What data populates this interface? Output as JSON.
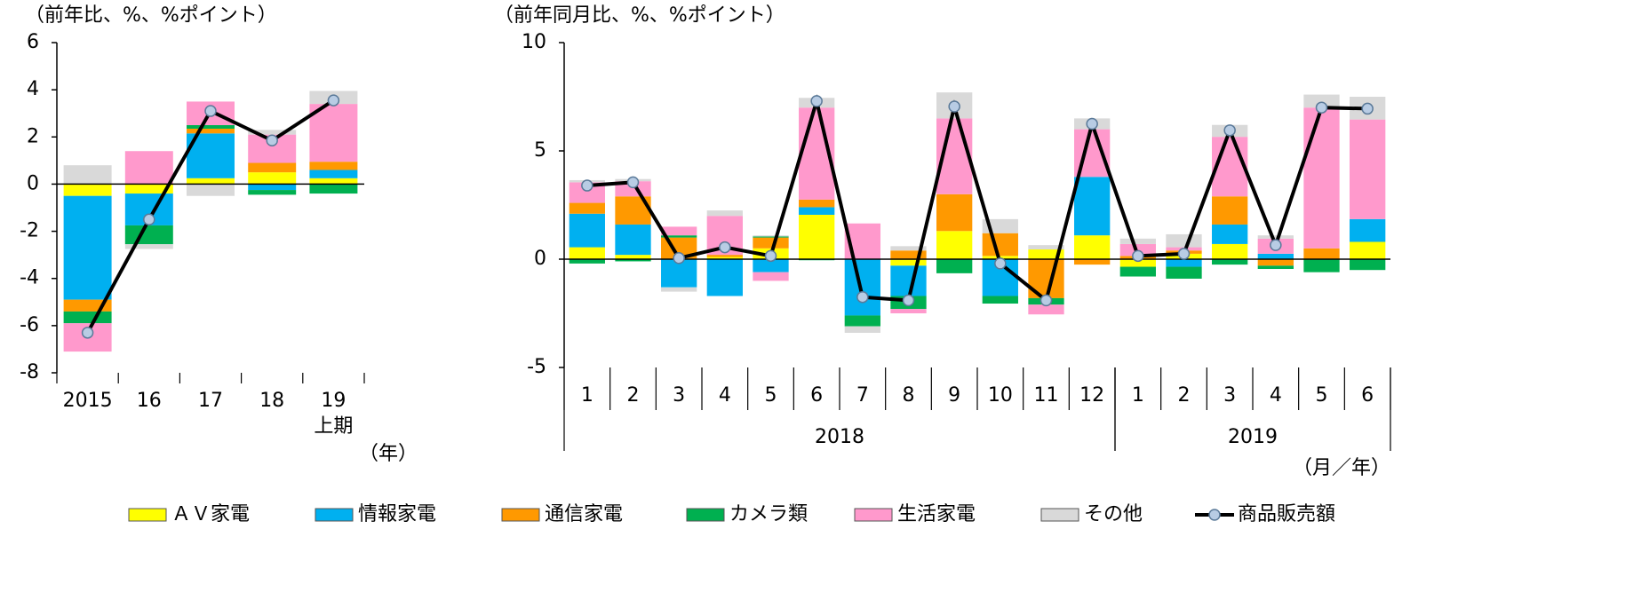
{
  "chart_data": [
    {
      "type": "bar",
      "stacked": true,
      "y_label": "（前年比、%、%ポイント）",
      "x_label": "（年）",
      "categories": [
        "2015",
        "16",
        "17",
        "18",
        "19\n上期"
      ],
      "ylim": [
        -8,
        6
      ],
      "yticks": [
        -8,
        -6,
        -4,
        -2,
        0,
        2,
        4,
        6
      ],
      "series": [
        {
          "name": "ＡＶ家電",
          "color": "#ffff00",
          "values": [
            -0.5,
            -0.4,
            0.25,
            0.5,
            0.25
          ]
        },
        {
          "name": "情報家電",
          "color": "#00b0f0",
          "values": [
            -4.4,
            -1.35,
            1.9,
            -0.25,
            0.35
          ]
        },
        {
          "name": "通信家電",
          "color": "#ff9900",
          "values": [
            -0.5,
            0,
            0.2,
            0.4,
            0.35
          ]
        },
        {
          "name": "カメラ類",
          "color": "#00b050",
          "values": [
            -0.5,
            -0.8,
            0.15,
            -0.2,
            -0.4
          ]
        },
        {
          "name": "生活家電",
          "color": "#ff99cc",
          "values": [
            -1.2,
            1.4,
            1.0,
            1.2,
            2.45
          ]
        },
        {
          "name": "その他",
          "color": "#d9d9d9",
          "values": [
            0.8,
            -0.2,
            -0.5,
            0.2,
            0.55
          ]
        },
        {
          "name": "商品販売額",
          "type": "line",
          "color": "#000000",
          "marker_color": "#b8cce4",
          "values": [
            -6.3,
            -1.5,
            3.1,
            1.85,
            3.55
          ]
        }
      ]
    },
    {
      "type": "bar",
      "stacked": true,
      "y_label": "（前年同月比、%、%ポイント）",
      "x_label": "（月／年）",
      "groups": [
        {
          "label": "2018",
          "categories": [
            "1",
            "2",
            "3",
            "4",
            "5",
            "6",
            "7",
            "8",
            "9",
            "10",
            "11",
            "12"
          ]
        },
        {
          "label": "2019",
          "categories": [
            "1",
            "2",
            "3",
            "4",
            "5",
            "6"
          ]
        }
      ],
      "ylim": [
        -5,
        10
      ],
      "yticks": [
        -5,
        0,
        5,
        10
      ],
      "series": [
        {
          "name": "ＡＶ家電",
          "color": "#ffff00",
          "values": [
            0.55,
            0.2,
            0,
            0.1,
            0.5,
            2.05,
            0,
            -0.3,
            1.3,
            0.15,
            0.45,
            1.1,
            -0.35,
            0.25,
            0.7,
            0,
            0,
            0.8
          ]
        },
        {
          "name": "情報家電",
          "color": "#00b0f0",
          "values": [
            1.55,
            1.4,
            -1.3,
            -1.7,
            -0.6,
            0.35,
            -2.6,
            -1.4,
            0,
            -1.7,
            0,
            2.7,
            0,
            -0.35,
            0.9,
            0.25,
            0,
            1.05
          ]
        },
        {
          "name": "通信家電",
          "color": "#ff9900",
          "values": [
            0.5,
            1.3,
            1.0,
            0.1,
            0.5,
            0.35,
            0,
            0.4,
            1.7,
            1.05,
            -1.8,
            -0.25,
            0.15,
            0.15,
            1.3,
            -0.3,
            0.5,
            0
          ]
        },
        {
          "name": "カメラ類",
          "color": "#00b050",
          "values": [
            -0.2,
            -0.1,
            0.1,
            0,
            0.05,
            -0.05,
            -0.5,
            -0.6,
            -0.65,
            -0.35,
            -0.3,
            0,
            -0.45,
            -0.55,
            -0.25,
            -0.15,
            -0.6,
            -0.5
          ]
        },
        {
          "name": "生活家電",
          "color": "#ff99cc",
          "values": [
            0.95,
            0.7,
            0.4,
            1.8,
            -0.4,
            4.25,
            1.65,
            -0.2,
            3.5,
            0,
            -0.45,
            2.2,
            0.55,
            0.15,
            2.75,
            0.7,
            6.5,
            4.6
          ]
        },
        {
          "name": "その他",
          "color": "#d9d9d9",
          "values": [
            0.1,
            0.1,
            -0.2,
            0.25,
            0.05,
            0.45,
            -0.3,
            0.2,
            1.2,
            0.65,
            0.2,
            0.5,
            0.25,
            0.6,
            0.55,
            0.15,
            0.6,
            1.05
          ]
        },
        {
          "name": "商品販売額",
          "type": "line",
          "color": "#000000",
          "marker_color": "#b8cce4",
          "values": [
            3.4,
            3.55,
            0.05,
            0.55,
            0.15,
            7.3,
            -1.75,
            -1.9,
            7.05,
            -0.2,
            -1.9,
            6.25,
            0.15,
            0.25,
            5.95,
            0.65,
            7.0,
            6.95
          ]
        }
      ]
    }
  ]
}
